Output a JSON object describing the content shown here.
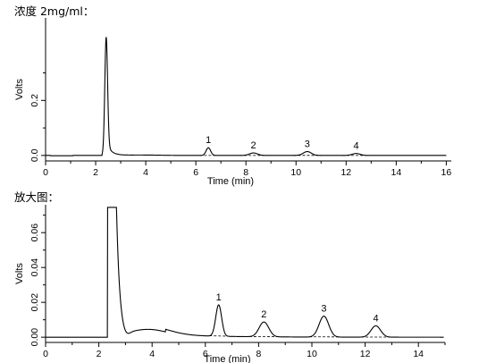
{
  "captions": {
    "top": "浓度 2mg/ml：",
    "bottom": "放大图："
  },
  "chart_data": [
    {
      "type": "line",
      "xlabel": "Time (min)",
      "ylabel": "Volts",
      "xlim": [
        0,
        16.2
      ],
      "ylim": [
        -0.02,
        0.5
      ],
      "xticks": [
        0,
        2,
        4,
        6,
        8,
        10,
        12,
        14,
        16
      ],
      "yticks": [
        0.0,
        0.2
      ],
      "ytick_labels": [
        "0.0",
        "0.2"
      ],
      "peaks": [
        {
          "label": "1",
          "time": 6.5,
          "height": 0.028
        },
        {
          "label": "2",
          "time": 8.3,
          "height": 0.009
        },
        {
          "label": "3",
          "time": 10.45,
          "height": 0.014
        },
        {
          "label": "4",
          "time": 12.4,
          "height": 0.007
        }
      ]
    },
    {
      "type": "line",
      "xlabel": "Time (min)",
      "ylabel": "Volts",
      "xlim": [
        0,
        15
      ],
      "ylim": [
        -0.003,
        0.076
      ],
      "xticks": [
        0,
        2,
        4,
        6,
        8,
        10,
        12,
        14
      ],
      "yticks": [
        0.0,
        0.02,
        0.04,
        0.06
      ],
      "ytick_labels": [
        "0.00",
        "0.02",
        "0.04",
        "0.06"
      ],
      "peaks": [
        {
          "label": "1",
          "time": 6.5,
          "height": 0.018
        },
        {
          "label": "2",
          "time": 8.2,
          "height": 0.0085
        },
        {
          "label": "3",
          "time": 10.45,
          "height": 0.012
        },
        {
          "label": "4",
          "time": 12.4,
          "height": 0.0065
        }
      ]
    }
  ]
}
